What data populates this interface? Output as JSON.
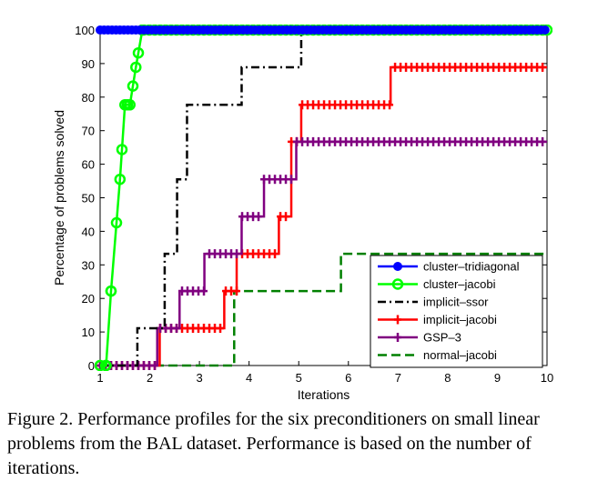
{
  "caption": "Figure 2. Performance profiles for the six preconditioners on small linear problems from the BAL dataset. Performance is based on the number of iterations.",
  "chart_data": {
    "type": "line",
    "title": "",
    "xlabel": "Iterations",
    "ylabel": "Percentage of problems solved",
    "xlim": [
      1,
      10
    ],
    "ylim": [
      0,
      100
    ],
    "xticks": [
      1,
      2,
      3,
      4,
      5,
      6,
      7,
      8,
      9,
      10
    ],
    "yticks": [
      0,
      10,
      20,
      30,
      40,
      50,
      60,
      70,
      80,
      90,
      100
    ],
    "grid": false,
    "legend": "bottom-right",
    "series": [
      {
        "name": "cluster–tridiagonal",
        "color": "#0000ff",
        "dash": "",
        "marker": "dot",
        "steps": [
          [
            1,
            100
          ],
          [
            10,
            100
          ]
        ]
      },
      {
        "name": "cluster–jacobi",
        "color": "#00ff00",
        "dash": "",
        "marker": "circle",
        "points": [
          [
            1,
            0
          ],
          [
            1.12,
            0
          ],
          [
            1.22,
            22.2
          ],
          [
            1.4,
            55.5
          ],
          [
            1.5,
            77.7
          ],
          [
            1.6,
            77.7
          ],
          [
            1.72,
            88.9
          ],
          [
            1.85,
            100
          ],
          [
            10,
            100
          ]
        ]
      },
      {
        "name": "implicit–ssor",
        "color": "#000000",
        "dash": "9,4,2,4",
        "marker": "",
        "steps": [
          [
            1,
            0
          ],
          [
            1.75,
            11.1
          ],
          [
            2.3,
            33.3
          ],
          [
            2.55,
            55.5
          ],
          [
            2.75,
            77.7
          ],
          [
            3.85,
            88.9
          ],
          [
            5.05,
            100
          ],
          [
            10,
            100
          ]
        ]
      },
      {
        "name": "implicit–jacobi",
        "color": "#ff0000",
        "dash": "",
        "marker": "plus",
        "steps": [
          [
            1,
            0
          ],
          [
            2.2,
            11.1
          ],
          [
            3.5,
            22.2
          ],
          [
            3.75,
            33.3
          ],
          [
            4.6,
            44.4
          ],
          [
            4.85,
            66.7
          ],
          [
            5.05,
            77.7
          ],
          [
            6.85,
            88.9
          ],
          [
            10,
            88.9
          ]
        ]
      },
      {
        "name": "GSP–3",
        "color": "#800080",
        "dash": "",
        "marker": "plus",
        "steps": [
          [
            1,
            0
          ],
          [
            2.15,
            11.1
          ],
          [
            2.6,
            22.2
          ],
          [
            3.1,
            33.3
          ],
          [
            3.85,
            44.4
          ],
          [
            4.3,
            55.5
          ],
          [
            4.95,
            66.7
          ],
          [
            10,
            66.7
          ]
        ]
      },
      {
        "name": "normal–jacobi",
        "color": "#008000",
        "dash": "10,5",
        "marker": "",
        "steps": [
          [
            1,
            0
          ],
          [
            3.7,
            22.2
          ],
          [
            5.85,
            33.3
          ],
          [
            10,
            33.3
          ]
        ]
      }
    ]
  }
}
